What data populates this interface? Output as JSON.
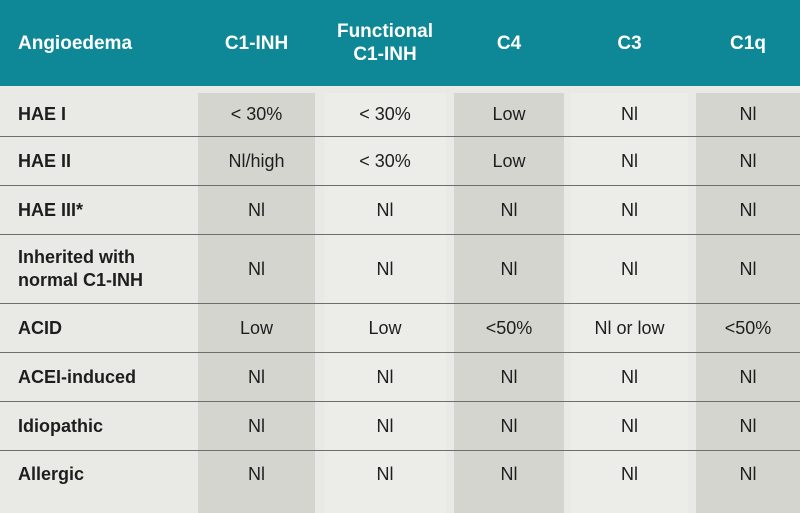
{
  "header": {
    "col0": "Angioedema",
    "col1": "C1-INH",
    "col2_line1": "Functional",
    "col2_line2": "C1-INH",
    "col3": "C4",
    "col4": "C3",
    "col5": "C1q"
  },
  "rows": [
    {
      "label": "HAE I",
      "c1": "< 30%",
      "c2": "< 30%",
      "c3": "Low",
      "c4": "Nl",
      "c5": "Nl"
    },
    {
      "label": "HAE II",
      "c1": "Nl/high",
      "c2": "< 30%",
      "c3": "Low",
      "c4": "Nl",
      "c5": "Nl"
    },
    {
      "label": "HAE III*",
      "c1": "Nl",
      "c2": "Nl",
      "c3": "Nl",
      "c4": "Nl",
      "c5": "Nl"
    },
    {
      "label_line1": "Inherited with",
      "label_line2": "normal C1-INH",
      "c1": "Nl",
      "c2": "Nl",
      "c3": "Nl",
      "c4": "Nl",
      "c5": "Nl"
    },
    {
      "label": "ACID",
      "c1": "Low",
      "c2": "Low",
      "c3": "<50%",
      "c4": "Nl or low",
      "c5": "<50%"
    },
    {
      "label": "ACEI-induced",
      "c1": "Nl",
      "c2": "Nl",
      "c3": "Nl",
      "c4": "Nl",
      "c5": "Nl"
    },
    {
      "label": "Idiopathic",
      "c1": "Nl",
      "c2": "Nl",
      "c3": "Nl",
      "c4": "Nl",
      "c5": "Nl"
    },
    {
      "label": "Allergic",
      "c1": "Nl",
      "c2": "Nl",
      "c3": "Nl",
      "c4": "Nl",
      "c5": "Nl"
    }
  ],
  "colors": {
    "header_bg": "#0e8896",
    "band_dark": "#d5d5d0",
    "band_light": "#ecece8",
    "page_bg": "#e9e9e5"
  }
}
